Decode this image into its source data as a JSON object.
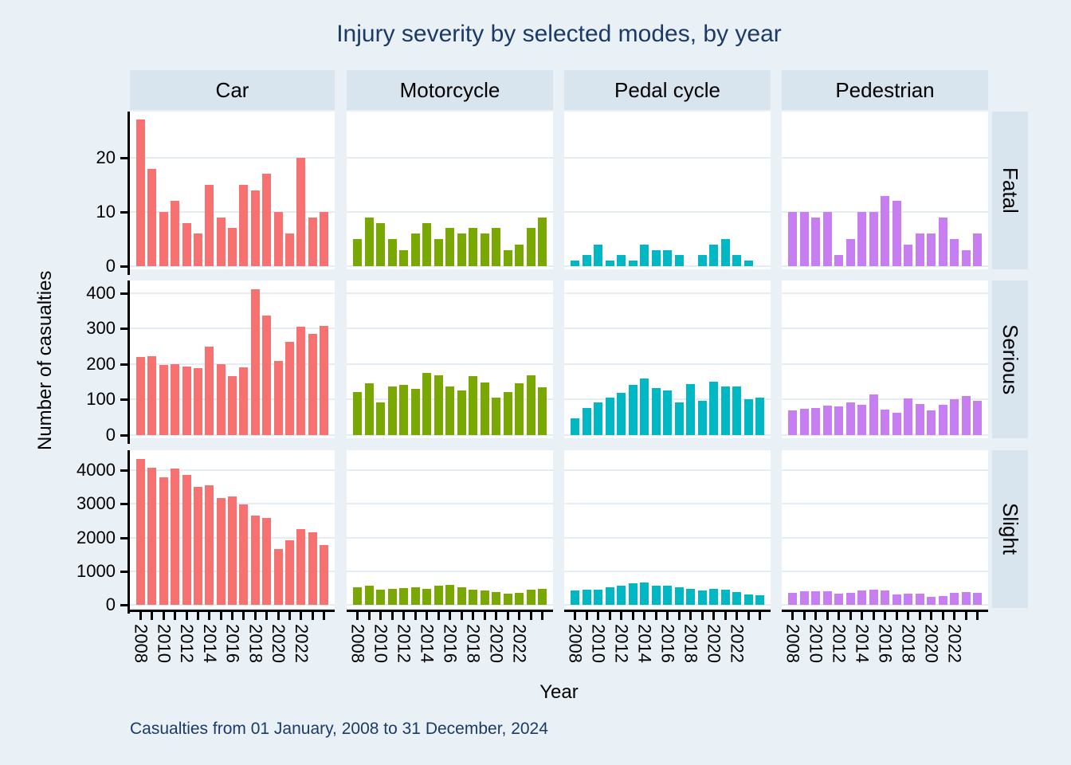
{
  "title": "Injury severity by selected modes, by year",
  "note": "Casualties from 01 January, 2008 to 31 December, 2024",
  "chart_data": {
    "type": "bar",
    "title": "Injury severity by selected modes, by year",
    "xlabel": "Year",
    "ylabel": "Number of casualties",
    "facet_columns": [
      "Car",
      "Motorcycle",
      "Pedal cycle",
      "Pedestrian"
    ],
    "facet_rows": [
      "Fatal",
      "Serious",
      "Slight"
    ],
    "years": [
      2008,
      2009,
      2010,
      2011,
      2012,
      2013,
      2014,
      2015,
      2016,
      2017,
      2018,
      2019,
      2020,
      2021,
      2022,
      2023,
      2024
    ],
    "x_tick_labels": [
      "2008",
      "2010",
      "2012",
      "2014",
      "2016",
      "2018",
      "2020",
      "2022"
    ],
    "grid": true,
    "row_axes": [
      {
        "name": "Fatal",
        "yticks": [
          0,
          10,
          20
        ],
        "ylim": [
          0,
          28.5
        ]
      },
      {
        "name": "Serious",
        "yticks": [
          0,
          100,
          200,
          300,
          400
        ],
        "ylim": [
          0,
          435
        ]
      },
      {
        "name": "Slight",
        "yticks": [
          0,
          1000,
          2000,
          3000,
          4000
        ],
        "ylim": [
          0,
          4600
        ]
      }
    ],
    "colors": {
      "Car": "#f6716f",
      "Motorcycle": "#7aa802",
      "Pedal cycle": "#00b8c4",
      "Pedestrian": "#c77ef0"
    },
    "values": {
      "Fatal": {
        "Car": [
          27,
          18,
          10,
          12,
          8,
          6,
          15,
          9,
          7,
          15,
          14,
          17,
          10,
          6,
          20,
          9,
          10
        ],
        "Motorcycle": [
          5,
          9,
          8,
          5,
          3,
          6,
          8,
          5,
          7,
          6,
          7,
          6,
          7,
          3,
          4,
          7,
          9
        ],
        "Pedal cycle": [
          1,
          2,
          4,
          1,
          2,
          1,
          4,
          3,
          3,
          2,
          0,
          2,
          4,
          5,
          2,
          1,
          0
        ],
        "Pedestrian": [
          10,
          10,
          9,
          10,
          2,
          5,
          10,
          10,
          13,
          12,
          4,
          6,
          6,
          9,
          5,
          3,
          6
        ]
      },
      "Serious": {
        "Car": [
          220,
          221,
          197,
          200,
          192,
          188,
          250,
          200,
          165,
          190,
          411,
          336,
          208,
          262,
          304,
          284,
          307
        ],
        "Motorcycle": [
          122,
          145,
          92,
          138,
          141,
          131,
          174,
          169,
          136,
          126,
          166,
          147,
          106,
          121,
          145,
          168,
          134
        ],
        "Pedal cycle": [
          48,
          77,
          92,
          106,
          119,
          142,
          160,
          133,
          125,
          91,
          144,
          97,
          150,
          136,
          136,
          101,
          106
        ],
        "Pedestrian": [
          70,
          75,
          77,
          84,
          81,
          92,
          86,
          114,
          72,
          63,
          103,
          88,
          69,
          86,
          101,
          110,
          97
        ]
      },
      "Slight": {
        "Car": [
          4340,
          4070,
          3790,
          4050,
          3860,
          3500,
          3560,
          3180,
          3230,
          3000,
          2650,
          2590,
          1660,
          1910,
          2250,
          2160,
          1790
        ],
        "Motorcycle": [
          530,
          560,
          440,
          470,
          500,
          520,
          470,
          570,
          600,
          520,
          460,
          430,
          390,
          330,
          360,
          460,
          480
        ],
        "Pedal cycle": [
          420,
          460,
          440,
          530,
          560,
          630,
          660,
          570,
          560,
          520,
          470,
          420,
          470,
          440,
          390,
          320,
          290
        ],
        "Pedestrian": [
          360,
          400,
          410,
          410,
          330,
          360,
          420,
          460,
          420,
          320,
          340,
          340,
          230,
          270,
          350,
          380,
          360
        ]
      }
    }
  }
}
